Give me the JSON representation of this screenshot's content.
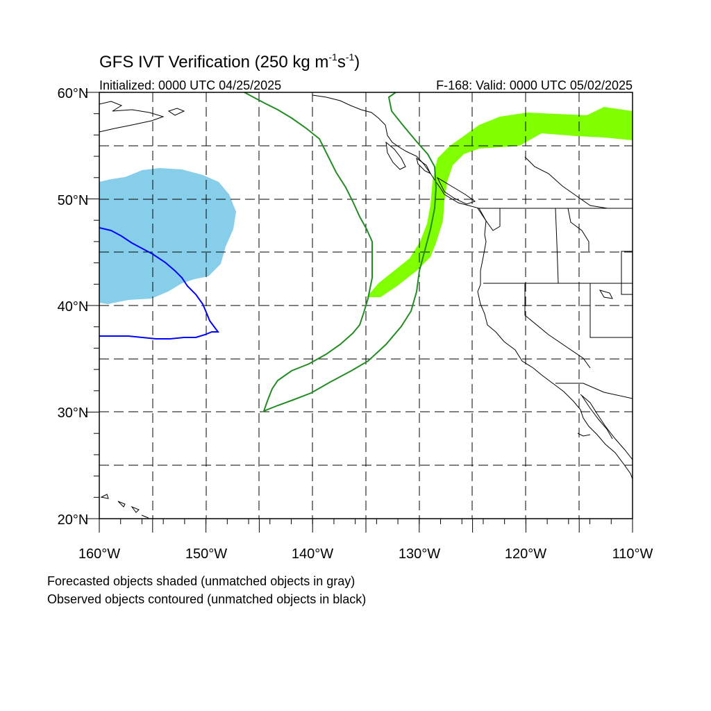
{
  "title": {
    "main": "GFS IVT Verification (250 kg m",
    "exp1": "-1",
    "mid": "s",
    "exp2": "-1",
    "close": ")"
  },
  "subtitle_left": "Initialized: 0000 UTC 04/25/2025",
  "subtitle_right": "F-168: Valid: 0000 UTC 05/02/2025",
  "lat_labels": [
    "60°N",
    "50°N",
    "40°N",
    "30°N",
    "20°N"
  ],
  "lon_labels": [
    "160°W",
    "150°W",
    "140°W",
    "130°W",
    "120°W",
    "110°W"
  ],
  "footnotes": [
    "Forecasted objects shaded (unmatched objects in gray)",
    "Observed objects contoured (unmatched objects in black)"
  ],
  "colors": {
    "forecast_object_1": "#87ceeb",
    "forecast_object_2": "#7fff00",
    "observed_object_1": "#0000ff",
    "observed_object_2": "#228b22",
    "coastline": "#000000"
  }
}
